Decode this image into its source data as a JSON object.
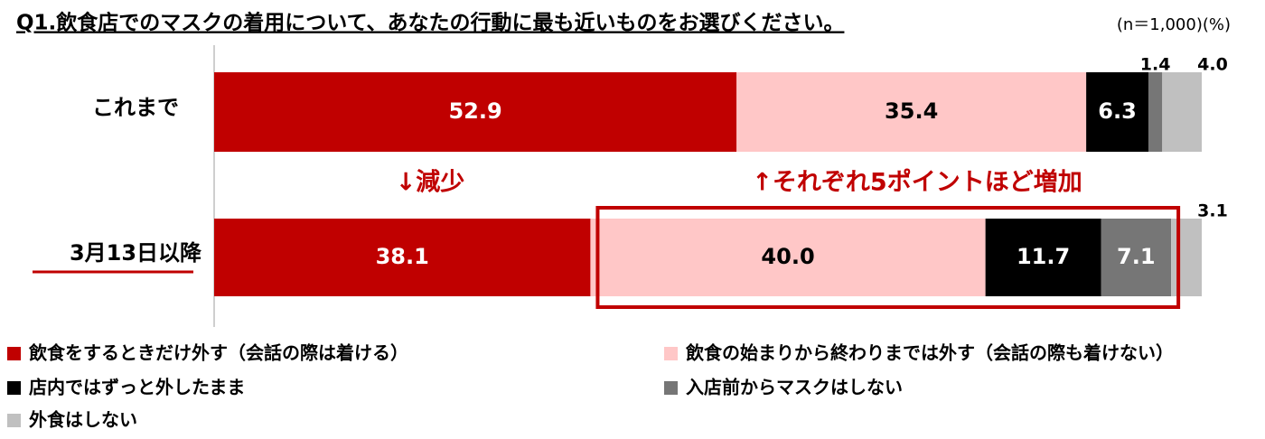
{
  "chart_data": {
    "type": "stacked-bar-horizontal",
    "title": "Q1.飲食店でのマスクの着用について、あなたの行動に最も近いものをお選びください。",
    "subtitle": "(n＝1,000)(%)",
    "annotations": [
      "↓減少",
      "↑それぞれ5ポイントほど増加"
    ],
    "categories": [
      "これまで",
      "3月13日以降"
    ],
    "xlim": [
      0,
      100
    ],
    "series": [
      {
        "name": "飲食をするときだけ外す（会話の際は着ける）",
        "color": "#c00000",
        "values": [
          52.9,
          38.1
        ]
      },
      {
        "name": "飲食の始まりから終わりまでは外す（会話の際も着けない）",
        "color": "#ffc7c7",
        "values": [
          35.4,
          40
        ],
        "value_labels": [
          "35.4",
          "40.0"
        ]
      },
      {
        "name": "店内ではずっと外したまま",
        "color": "#000000",
        "values": [
          6.3,
          11.7
        ]
      },
      {
        "name": "入店前からマスクはしない",
        "color": "#767676",
        "values": [
          1.4,
          7.1
        ]
      },
      {
        "name": "外食はしない",
        "color": "#c0c0c0",
        "values": [
          4,
          3.1
        ],
        "value_labels": [
          "4.0",
          "3.1"
        ]
      }
    ]
  }
}
